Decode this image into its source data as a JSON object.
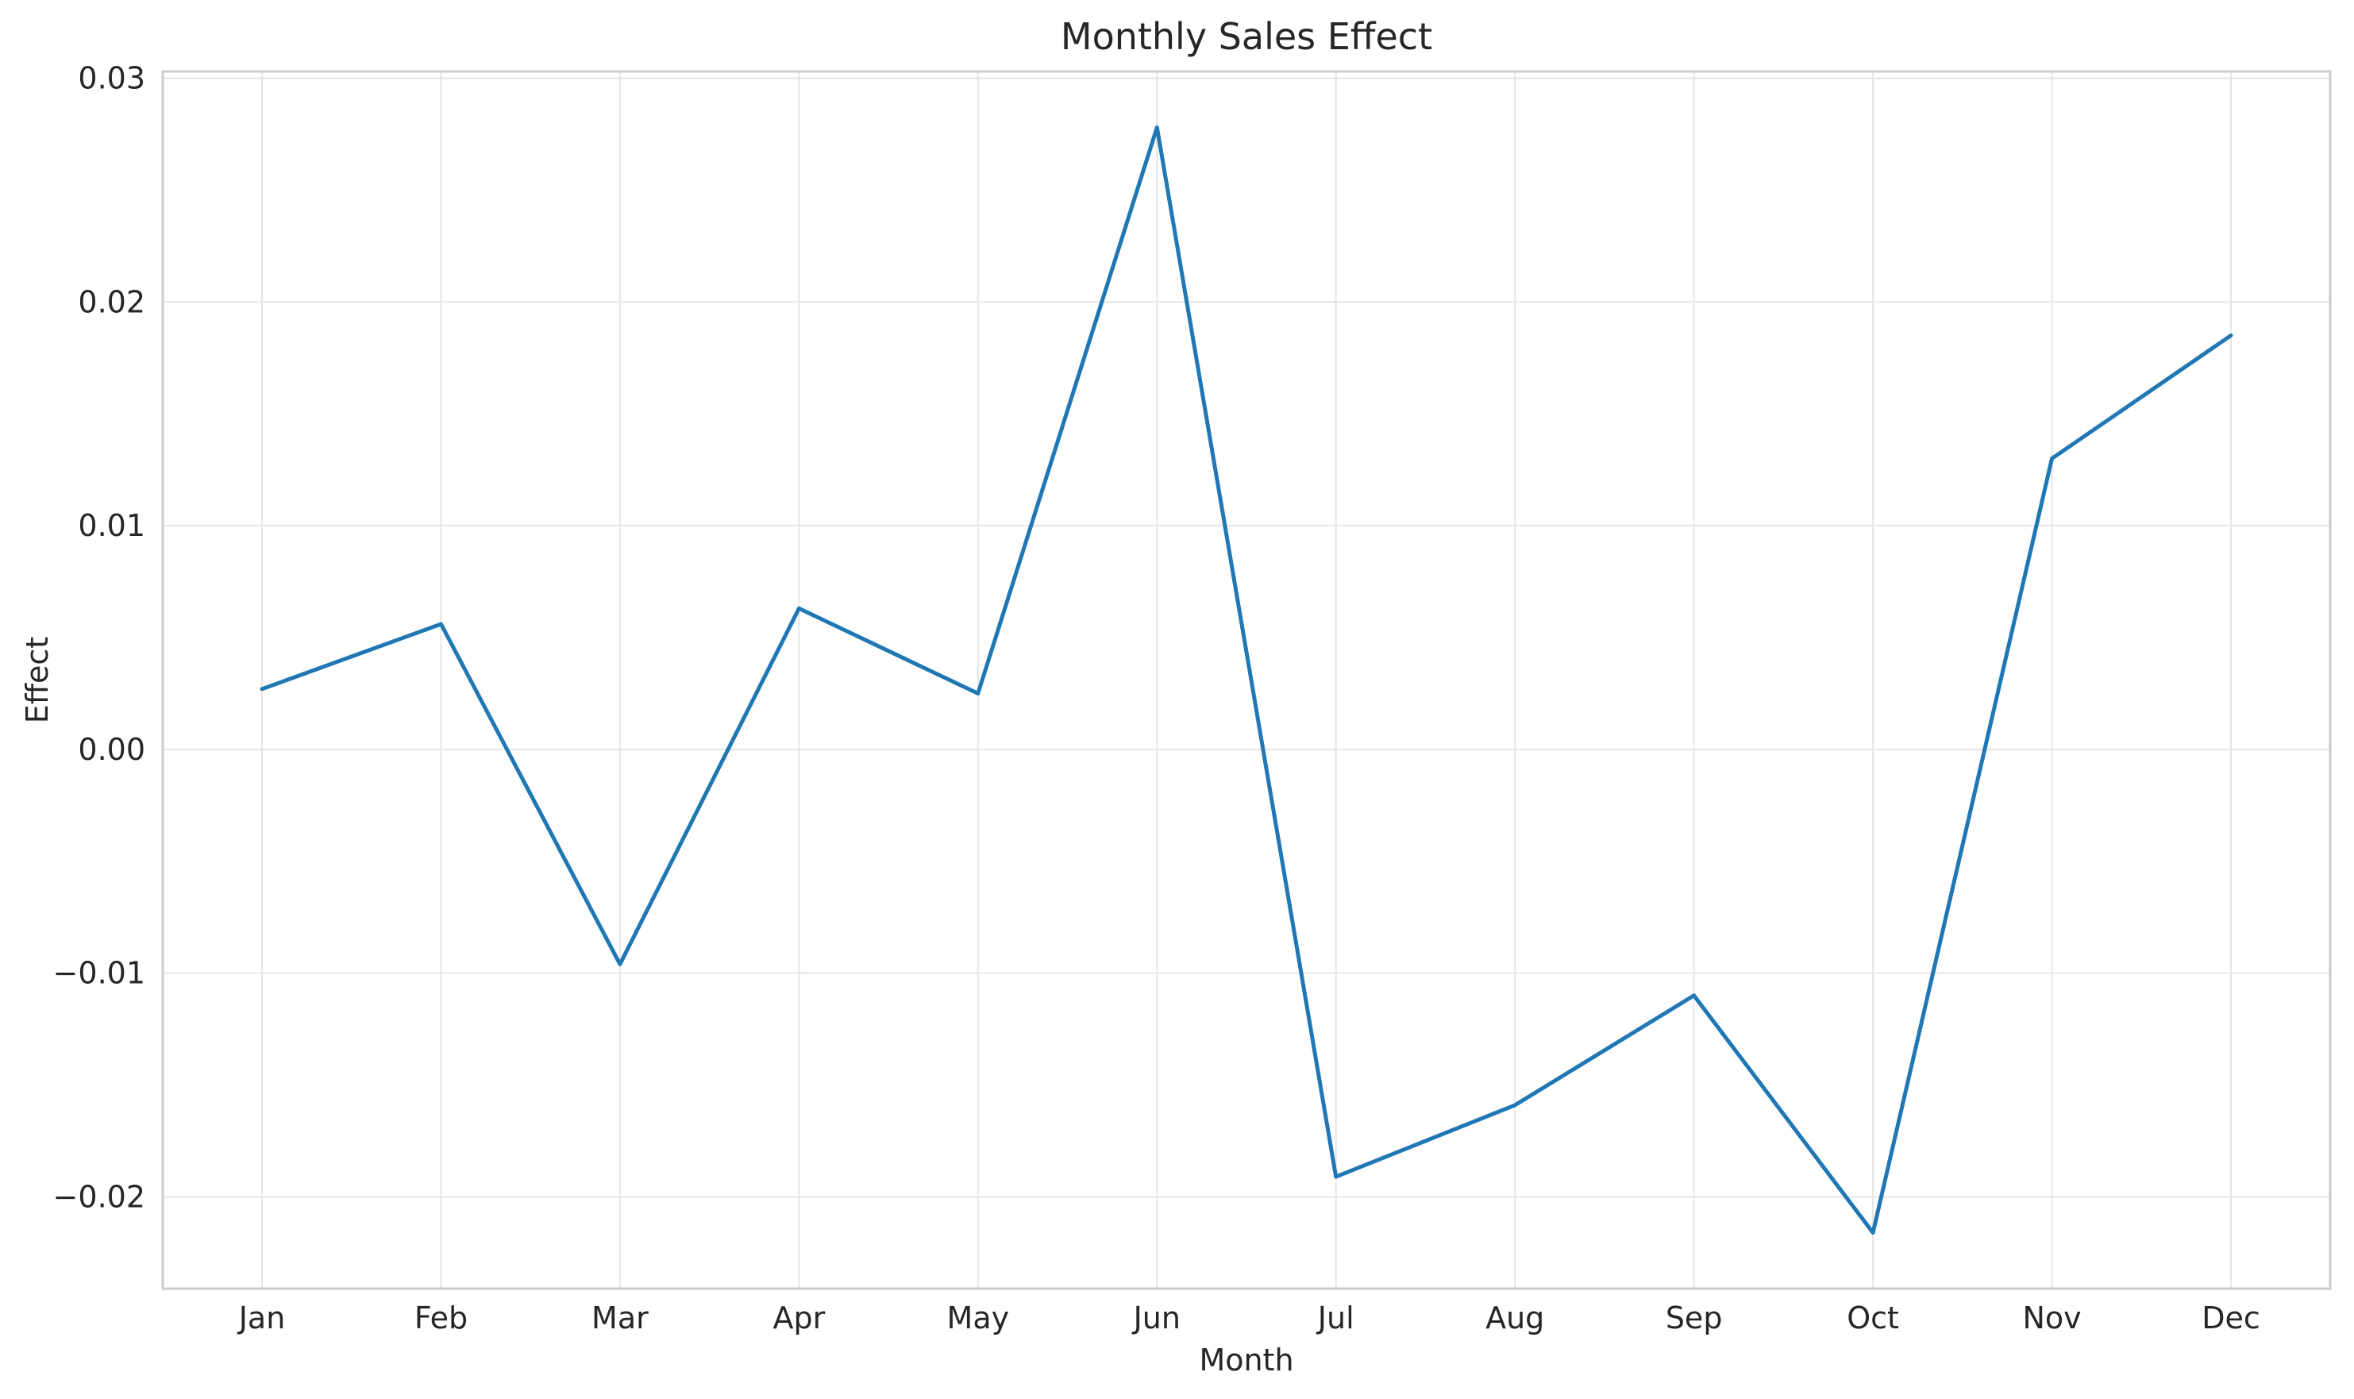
{
  "chart_data": {
    "type": "line",
    "title": "Monthly Sales Effect",
    "xlabel": "Month",
    "ylabel": "Effect",
    "categories": [
      "Jan",
      "Feb",
      "Mar",
      "Apr",
      "May",
      "Jun",
      "Jul",
      "Aug",
      "Sep",
      "Oct",
      "Nov",
      "Dec"
    ],
    "series": [
      {
        "values": [
          0.0027,
          0.0056,
          -0.0096,
          0.0063,
          0.0025,
          0.0278,
          -0.0191,
          -0.0159,
          -0.011,
          -0.0216,
          0.013,
          0.0185
        ],
        "color": "#1f77b4"
      }
    ],
    "ylim": [
      -0.0241,
      0.0303
    ],
    "yticks": [
      -0.02,
      -0.01,
      0.0,
      0.01,
      0.02,
      0.03
    ],
    "ytick_labels": [
      "−0.02",
      "−0.01",
      "0.00",
      "0.01",
      "0.02",
      "0.03"
    ],
    "grid": true,
    "legend": "none"
  }
}
